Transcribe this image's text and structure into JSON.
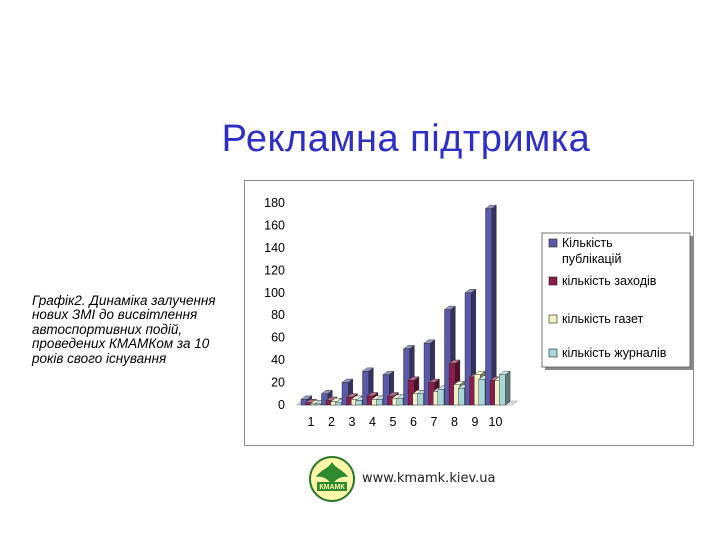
{
  "slide": {
    "title": "Рекламна підтримка",
    "caption": "Графік2. Динаміка залучення нових ЗМІ до висвітлення автоспортивних подій, проведених КМАМКом за 10 років свого існування",
    "footer_url": "www.kmamk.kiev.ua",
    "logo_text": "КМАМК"
  },
  "chart_data": {
    "type": "bar",
    "categories": [
      "1",
      "2",
      "3",
      "4",
      "5",
      "6",
      "7",
      "8",
      "9",
      "10"
    ],
    "ylim": [
      0,
      180
    ],
    "yticks": [
      0,
      20,
      40,
      60,
      80,
      100,
      120,
      140,
      160,
      180
    ],
    "grid": false,
    "legend_position": "right",
    "series": [
      {
        "name": "Кількість публікацій",
        "color": "#5a5aa8",
        "values": [
          5,
          10,
          20,
          30,
          27,
          50,
          55,
          85,
          100,
          175
        ]
      },
      {
        "name": "кількість заходів",
        "color": "#8a1d4a",
        "values": [
          2,
          4,
          7,
          8,
          8,
          22,
          20,
          37,
          25,
          22
        ]
      },
      {
        "name": "кількість газет",
        "color": "#f2f0c6",
        "values": [
          1,
          3,
          5,
          5,
          6,
          10,
          12,
          18,
          27,
          22
        ]
      },
      {
        "name": "кількість журналів",
        "color": "#a9d6d6",
        "values": [
          1,
          2,
          4,
          5,
          6,
          10,
          14,
          15,
          23,
          27
        ]
      }
    ]
  }
}
